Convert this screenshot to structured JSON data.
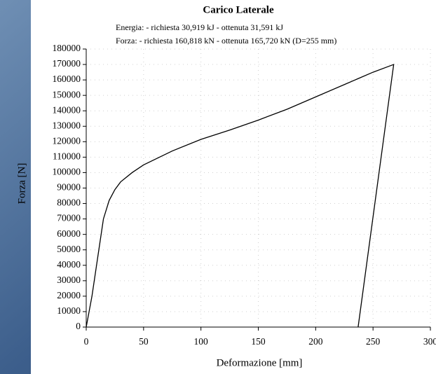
{
  "chart_data": {
    "type": "line",
    "title": "Carico Laterale",
    "subtitles": [
      "Energia: - richiesta 30,919 kJ - ottenuta 31,591 kJ",
      "Forza: - richiesta 160,818 kN - ottenuta 165,720 kN (D=255 mm)"
    ],
    "xlabel": "Deformazione [mm]",
    "ylabel": "Forza [N]",
    "x": [
      0,
      5,
      10,
      15,
      20,
      25,
      30,
      40,
      50,
      75,
      100,
      125,
      150,
      175,
      200,
      225,
      250,
      268,
      237
    ],
    "values": [
      0,
      20000,
      45000,
      70000,
      82000,
      89000,
      94000,
      100000,
      105000,
      114000,
      121500,
      127500,
      134000,
      141000,
      149000,
      157000,
      165000,
      170000,
      0
    ],
    "color": "#000000",
    "xlim": [
      0,
      300
    ],
    "ylim": [
      0,
      180000
    ],
    "xticks": [
      0,
      50,
      100,
      150,
      200,
      250,
      300
    ],
    "yticks": [
      0,
      10000,
      20000,
      30000,
      40000,
      50000,
      60000,
      70000,
      80000,
      90000,
      100000,
      110000,
      120000,
      130000,
      140000,
      150000,
      160000,
      170000,
      180000
    ],
    "grid": true
  }
}
